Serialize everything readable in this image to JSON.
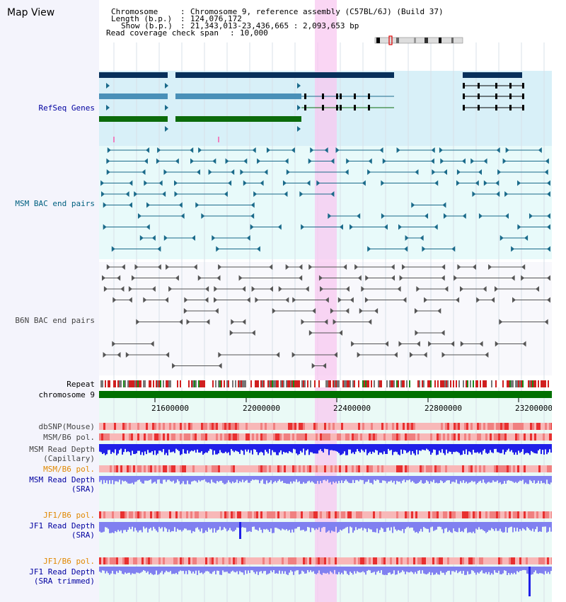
{
  "view_title": "Map View",
  "info": {
    "chromosome_label": "Chromosome",
    "chromosome_value": "Chromosome 9, reference assembly (C57BL/6J) (Build 37)",
    "length_label": "Length (b.p.)",
    "length_value": "124,076,172",
    "show_label": "Show (b.p.)",
    "show_value": "21,343,013-23,436,665 : 2,093,653 bp",
    "coverage_label": "Read coverage check span",
    "coverage_value": "10,000"
  },
  "tracks": {
    "refseq": "RefSeq Genes",
    "msm_bac": "MSM BAC end pairs",
    "b6n_bac": "B6N BAC end pairs",
    "repeat": "Repeat",
    "chromosome": "chromosome 9",
    "dbsnp": "dbSNP(Mouse)",
    "msm_b6_pol_1": "MSM/B6 pol.",
    "msm_depth_cap_1": "MSM Read Depth",
    "msm_depth_cap_2": "(Capillary)",
    "msm_b6_pol_2": "MSM/B6 pol.",
    "msm_depth_sra_1": "MSM Read Depth",
    "msm_depth_sra_2": "(SRA)",
    "jf1_b6_pol_1": "JF1/B6 pol.",
    "jf1_depth_sra_1": "JF1 Read Depth",
    "jf1_depth_sra_2": "(SRA)",
    "jf1_b6_pol_2": "JF1/B6 pol.",
    "jf1_depth_trim_1": "JF1 Read Depth",
    "jf1_depth_trim_2": "(SRA trimmed)"
  },
  "axis_ticks": [
    "21600000",
    "22000000",
    "22400000",
    "22800000",
    "23200000"
  ],
  "colors": {
    "refseq_dark": "#08305a",
    "refseq_mid": "#4a90b8",
    "refseq_green": "#0b6b0b",
    "msm_bac": "#1a6a8a",
    "b6n_bac": "#555555",
    "highlight": "#f8c8f0",
    "depth_blue": "#2020e8",
    "depth_light": "#8080f0",
    "label_blue": "#0000a0",
    "label_orange": "#e08800",
    "label_teal": "#006080"
  }
}
